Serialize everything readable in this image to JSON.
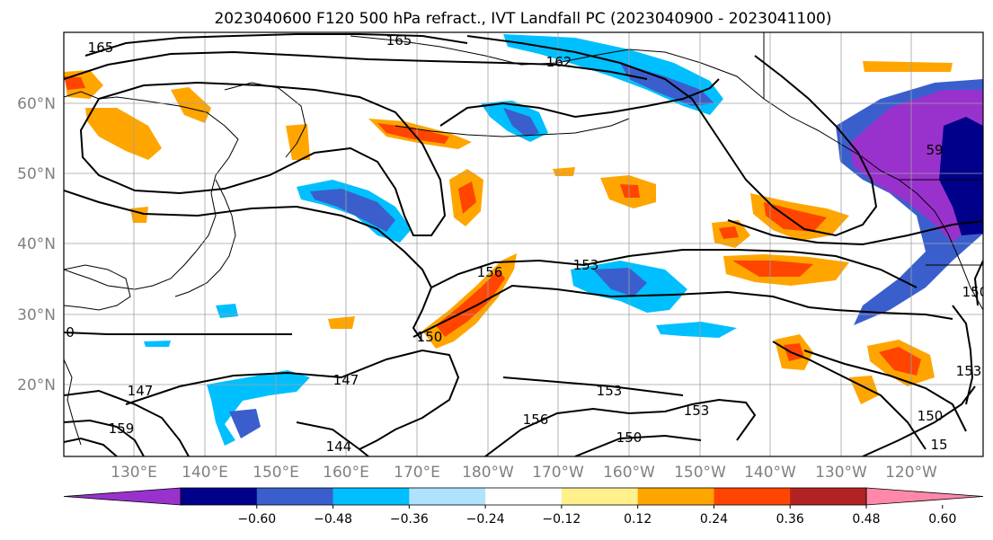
{
  "title": "2023040600 F120 500 hPa refract., IVT Landfall PC (2023040900 - 2023041100)",
  "lat_labels": [
    "60°N",
    "50°N",
    "40°N",
    "30°N",
    "20°N"
  ],
  "lon_labels": [
    "130°E",
    "140°E",
    "150°E",
    "160°E",
    "170°E",
    "180°W",
    "170°W",
    "160°W",
    "150°W",
    "140°W",
    "130°W",
    "120°W"
  ],
  "colorbar": {
    "tick_labels": [
      "−0.60",
      "−0.48",
      "−0.36",
      "−0.24",
      "−0.12",
      "0.12",
      "0.24",
      "0.36",
      "0.48",
      "0.60"
    ],
    "colors": [
      "#9932cc",
      "#00008b",
      "#3a5fcd",
      "#00bfff",
      "#b0e2ff",
      "#ffffff",
      "#fff08c",
      "#ffa500",
      "#ff4500",
      "#b22222",
      "#ff88aa"
    ]
  },
  "contour_labels": [
    "165",
    "165",
    "162",
    "153",
    "156",
    "150",
    "147",
    "153",
    "156",
    "150",
    "159",
    "147",
    "144",
    "153",
    "150",
    "153",
    "150",
    "15",
    "59",
    "0"
  ],
  "colors": {
    "land_line": "#000000",
    "grid": "#a0a0a0",
    "contour": "#000000"
  }
}
